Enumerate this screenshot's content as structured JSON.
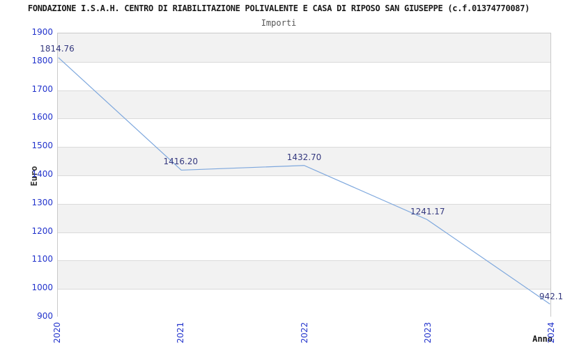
{
  "page": {
    "title": "FONDAZIONE I.S.A.H. CENTRO DI RIABILITAZIONE POLIVALENTE E CASA DI RIPOSO SAN GIUSEPPE (c.f.01374770087)"
  },
  "colors": {
    "title": "#1a1a1a",
    "subtitle": "#555555",
    "tick_label": "#2233cc",
    "data_label": "#35397f",
    "line": "#7da7dd",
    "band_gray": "#f2f2f2",
    "band_white": "#ffffff",
    "grid": "#dadada",
    "border": "#c9c9c9",
    "axis_label": "#333333"
  },
  "chart_data": {
    "type": "line",
    "title": "Importi",
    "xlabel": "Anno",
    "ylabel": "Euro",
    "categories": [
      "2020",
      "2021",
      "2022",
      "2023",
      "2024"
    ],
    "values": [
      1814.76,
      1416.2,
      1432.7,
      1241.17,
      942.1
    ],
    "point_labels": [
      "1814.76",
      "1416.20",
      "1432.70",
      "1241.17",
      "942.1"
    ],
    "ylim": [
      900,
      1900
    ],
    "ytick_step": 100,
    "grid": true,
    "banded_background": true,
    "band_pattern_from_top": "gray-first",
    "legend": "none"
  }
}
